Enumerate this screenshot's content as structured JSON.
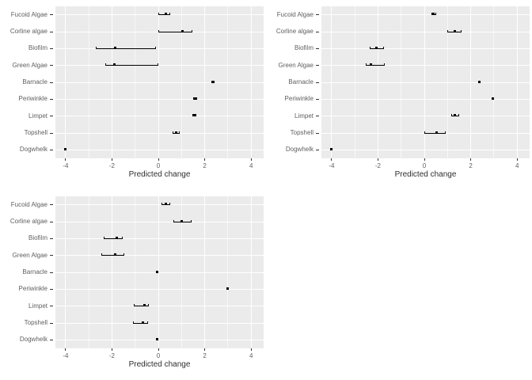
{
  "style": {
    "page_bg": "#ffffff",
    "panel_bg": "#ebebeb",
    "grid_major": "#ffffff",
    "grid_minor": "rgba(255,255,255,0.6)",
    "mark_color": "#000000",
    "axis_text_color": "#5f5f5f",
    "axis_title_color": "#2e2e2e",
    "tick_color": "#333333"
  },
  "chart_data": [
    {
      "type": "scatter",
      "subtype": "horizontal_pointrange",
      "position": "top-left",
      "title": "",
      "xlabel": "Predicted change",
      "legend": "none",
      "grid": "on",
      "xlim": [
        -4.44,
        4.54
      ],
      "x_ticks": [
        -4,
        -2,
        0,
        2,
        4
      ],
      "x_tick_labels": [
        "-4",
        "-2",
        "0",
        "2",
        "4"
      ],
      "x_minor_ticks": [
        -3,
        -1,
        1,
        3
      ],
      "categories": [
        "Fucoid Algae",
        "Corline algae",
        "Biofilm",
        "Green Algae",
        "Barnacle",
        "Periwinkle",
        "Limpet",
        "Topshell",
        "Dogwhelk"
      ],
      "points": [
        {
          "category": "Fucoid Algae",
          "est": 0.33,
          "lo": 0.0,
          "hi": 0.5
        },
        {
          "category": "Corline algae",
          "est": 1.05,
          "lo": 0.0,
          "hi": 1.45
        },
        {
          "category": "Biofilm",
          "est": -1.85,
          "lo": -2.7,
          "hi": -0.1
        },
        {
          "category": "Green Algae",
          "est": -1.88,
          "lo": -2.3,
          "hi": 0.0
        },
        {
          "category": "Barnacle",
          "est": 2.36,
          "lo": 2.3,
          "hi": 2.42
        },
        {
          "category": "Periwinkle",
          "est": 1.57,
          "lo": 1.5,
          "hi": 1.67
        },
        {
          "category": "Limpet",
          "est": 1.55,
          "lo": 1.47,
          "hi": 1.64
        },
        {
          "category": "Topshell",
          "est": 0.77,
          "lo": 0.61,
          "hi": 0.92
        },
        {
          "category": "Dogwhelk",
          "est": -4.02,
          "lo": -4.05,
          "hi": -3.98
        }
      ]
    },
    {
      "type": "scatter",
      "subtype": "horizontal_pointrange",
      "position": "top-right",
      "title": "",
      "xlabel": "Predicted change",
      "legend": "none",
      "grid": "on",
      "xlim": [
        -4.44,
        4.54
      ],
      "x_ticks": [
        -4,
        -2,
        0,
        2,
        4
      ],
      "x_tick_labels": [
        "-4",
        "-2",
        "0",
        "2",
        "4"
      ],
      "x_minor_ticks": [
        -3,
        -1,
        1,
        3
      ],
      "categories": [
        "Fucoid Algae",
        "Corline algae",
        "Biofilm",
        "Green Algae",
        "Barnacle",
        "Periwinkle",
        "Limpet",
        "Topshell",
        "Dogwhelk"
      ],
      "points": [
        {
          "category": "Fucoid Algae",
          "est": 0.4,
          "lo": 0.3,
          "hi": 0.5
        },
        {
          "category": "Corline algae",
          "est": 1.33,
          "lo": 1.0,
          "hi": 1.61
        },
        {
          "category": "Biofilm",
          "est": -2.08,
          "lo": -2.36,
          "hi": -1.74
        },
        {
          "category": "Green Algae",
          "est": -2.29,
          "lo": -2.53,
          "hi": -1.72
        },
        {
          "category": "Barnacle",
          "est": 2.37,
          "lo": 2.32,
          "hi": 2.42
        },
        {
          "category": "Periwinkle",
          "est": 2.95,
          "lo": 2.93,
          "hi": 2.98
        },
        {
          "category": "Limpet",
          "est": 1.33,
          "lo": 1.16,
          "hi": 1.5
        },
        {
          "category": "Topshell",
          "est": 0.53,
          "lo": 0.0,
          "hi": 0.92
        },
        {
          "category": "Dogwhelk",
          "est": -4.02,
          "lo": -4.05,
          "hi": -3.98
        }
      ]
    },
    {
      "type": "scatter",
      "subtype": "horizontal_pointrange",
      "position": "bottom-left",
      "title": "",
      "xlabel": "Predicted change",
      "legend": "none",
      "grid": "on",
      "xlim": [
        -4.44,
        4.54
      ],
      "x_ticks": [
        -4,
        -2,
        0,
        2,
        4
      ],
      "x_tick_labels": [
        "-4",
        "-2",
        "0",
        "2",
        "4"
      ],
      "x_minor_ticks": [
        -3,
        -1,
        1,
        3
      ],
      "categories": [
        "Fucoid Algae",
        "Corline algae",
        "Biofilm",
        "Green Algae",
        "Barnacle",
        "Periwinkle",
        "Limpet",
        "Topshell",
        "Dogwhelk"
      ],
      "points": [
        {
          "category": "Fucoid Algae",
          "est": 0.31,
          "lo": 0.12,
          "hi": 0.51
        },
        {
          "category": "Corline algae",
          "est": 1.02,
          "lo": 0.65,
          "hi": 1.43
        },
        {
          "category": "Biofilm",
          "est": -1.81,
          "lo": -2.35,
          "hi": -1.54
        },
        {
          "category": "Green Algae",
          "est": -1.85,
          "lo": -2.46,
          "hi": -1.48
        },
        {
          "category": "Barnacle",
          "est": -0.05,
          "lo": -0.07,
          "hi": -0.02
        },
        {
          "category": "Periwinkle",
          "est": 2.97,
          "lo": 2.94,
          "hi": 3.0
        },
        {
          "category": "Limpet",
          "est": -0.61,
          "lo": -1.06,
          "hi": -0.4
        },
        {
          "category": "Topshell",
          "est": -0.67,
          "lo": -1.09,
          "hi": -0.45
        },
        {
          "category": "Dogwhelk",
          "est": -0.05,
          "lo": -0.07,
          "hi": -0.02
        }
      ]
    }
  ]
}
